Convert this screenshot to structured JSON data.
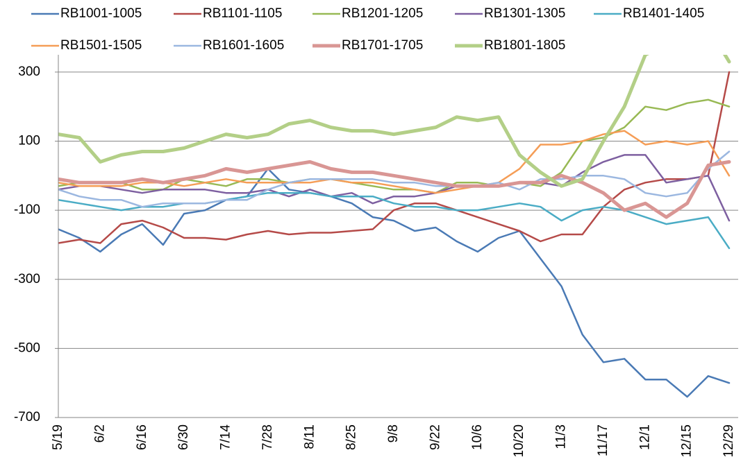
{
  "chart_data": {
    "type": "line",
    "categories": [
      "5/19",
      null,
      "6/2",
      null,
      "6/16",
      null,
      "6/30",
      null,
      "7/14",
      null,
      "7/28",
      null,
      "8/11",
      null,
      "8/25",
      null,
      "9/8",
      null,
      "9/22",
      null,
      "10/6",
      null,
      "10/20",
      null,
      "11/3",
      null,
      "11/17",
      null,
      "12/1",
      null,
      "12/15",
      null,
      "12/29"
    ],
    "ylim": [
      -700,
      350
    ],
    "yticks": [
      -700,
      -500,
      -300,
      -100,
      100,
      300
    ],
    "grid": true,
    "series": [
      {
        "name": "RB1001-1005",
        "color": "#4a7ab5",
        "line_width": 2.5,
        "values": [
          -155,
          -180,
          -220,
          -170,
          -140,
          -200,
          -110,
          -100,
          -70,
          -60,
          20,
          -40,
          -50,
          -60,
          -80,
          -120,
          -130,
          -160,
          -150,
          -190,
          -220,
          -180,
          -160,
          -240,
          -320,
          -460,
          -540,
          -530,
          -590,
          -590,
          -640,
          -580,
          -600
        ]
      },
      {
        "name": "RB1101-1105",
        "color": "#b54a48",
        "line_width": 2.5,
        "values": [
          -195,
          -185,
          -195,
          -140,
          -130,
          -150,
          -180,
          -180,
          -185,
          -170,
          -160,
          -170,
          -165,
          -165,
          -160,
          -155,
          -100,
          -80,
          -80,
          -100,
          -120,
          -140,
          -160,
          -190,
          -170,
          -170,
          -90,
          -40,
          -20,
          -10,
          -10,
          0,
          300
        ]
      },
      {
        "name": "RB1201-1205",
        "color": "#98b954",
        "line_width": 2.5,
        "values": [
          -30,
          -20,
          -20,
          -20,
          -40,
          -40,
          -10,
          -20,
          -30,
          -10,
          -10,
          -20,
          -10,
          -10,
          -20,
          -30,
          -40,
          -40,
          -50,
          -20,
          -20,
          -30,
          -20,
          -30,
          10,
          100,
          110,
          140,
          200,
          190,
          210,
          220,
          200
        ]
      },
      {
        "name": "RB1301-1305",
        "color": "#7d5fa0",
        "line_width": 2.5,
        "values": [
          -40,
          -30,
          -30,
          -40,
          -50,
          -40,
          -40,
          -40,
          -50,
          -50,
          -40,
          -60,
          -40,
          -60,
          -50,
          -80,
          -60,
          -60,
          -50,
          -30,
          -30,
          -30,
          -20,
          -20,
          -30,
          10,
          40,
          60,
          60,
          -20,
          -10,
          0,
          -130
        ]
      },
      {
        "name": "RB1401-1405",
        "color": "#4aacc5",
        "line_width": 2.5,
        "values": [
          -70,
          -80,
          -90,
          -100,
          -90,
          -90,
          -80,
          -80,
          -70,
          -60,
          -50,
          -50,
          -50,
          -60,
          -60,
          -60,
          -80,
          -90,
          -90,
          -100,
          -100,
          -90,
          -80,
          -90,
          -130,
          -100,
          -90,
          -100,
          -120,
          -140,
          -130,
          -120,
          -210
        ]
      },
      {
        "name": "RB1501-1505",
        "color": "#f59d56",
        "line_width": 2.5,
        "values": [
          -20,
          -30,
          -30,
          -30,
          -20,
          -20,
          -30,
          -20,
          -10,
          -20,
          -20,
          -20,
          -20,
          -10,
          -20,
          -20,
          -30,
          -40,
          -50,
          -40,
          -30,
          -20,
          20,
          90,
          90,
          100,
          120,
          130,
          90,
          100,
          90,
          100,
          0
        ]
      },
      {
        "name": "RB1601-1605",
        "color": "#9bb7e0",
        "line_width": 2.5,
        "values": [
          -40,
          -60,
          -70,
          -70,
          -90,
          -80,
          -80,
          -80,
          -70,
          -70,
          -40,
          -20,
          -10,
          -10,
          -10,
          -10,
          -20,
          -20,
          -30,
          -30,
          -30,
          -20,
          -40,
          -10,
          -10,
          0,
          0,
          -10,
          -50,
          -60,
          -50,
          20,
          70
        ]
      },
      {
        "name": "RB1701-1705",
        "color": "#d99694",
        "line_width": 5,
        "values": [
          -10,
          -20,
          -20,
          -20,
          -10,
          -20,
          -10,
          0,
          20,
          10,
          20,
          30,
          40,
          20,
          10,
          10,
          0,
          -10,
          -20,
          -30,
          -30,
          -30,
          -20,
          -20,
          0,
          -20,
          -50,
          -100,
          -80,
          -120,
          -80,
          30,
          40
        ]
      },
      {
        "name": "RB1801-1805",
        "color": "#b3cf87",
        "line_width": 5,
        "values": [
          120,
          110,
          40,
          60,
          70,
          70,
          80,
          100,
          120,
          110,
          120,
          150,
          160,
          140,
          130,
          130,
          120,
          130,
          140,
          170,
          160,
          170,
          60,
          10,
          -30,
          -10,
          100,
          200,
          350,
          380,
          420,
          430,
          330
        ]
      }
    ]
  }
}
